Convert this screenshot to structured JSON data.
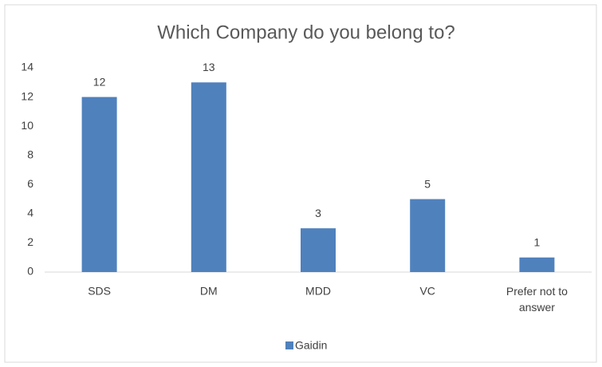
{
  "chart_data": {
    "type": "bar",
    "title": "Which Company do you belong to?",
    "categories": [
      "SDS",
      "DM",
      "MDD",
      "VC",
      "Prefer not to answer"
    ],
    "series": [
      {
        "name": "Gaidin",
        "color": "#4f81bd",
        "values": [
          12,
          13,
          3,
          5,
          1
        ]
      }
    ],
    "ylim": [
      0,
      14
    ],
    "yticks": [
      0,
      2,
      4,
      6,
      8,
      10,
      12,
      14
    ],
    "grid": false,
    "legend": "bottom",
    "data_labels": true
  }
}
